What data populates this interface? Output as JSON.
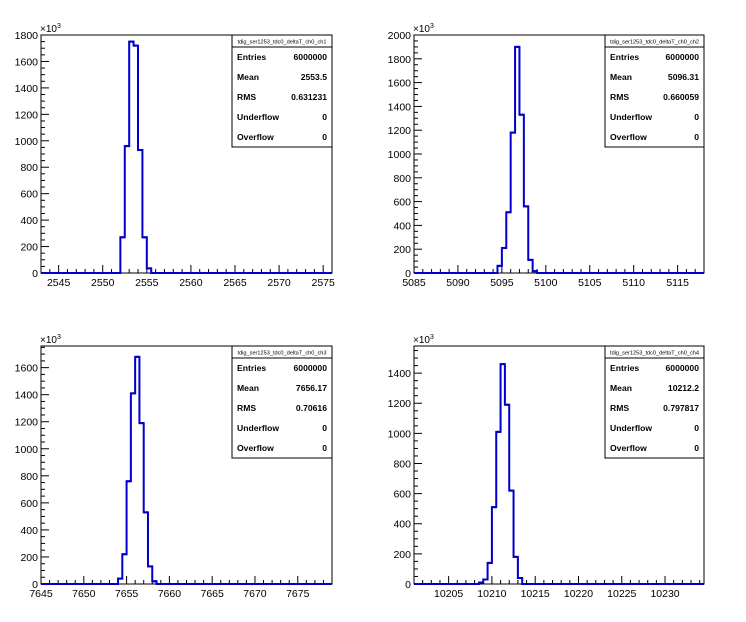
{
  "chart_data": [
    {
      "type": "histogram",
      "title": "tdig_ser1253_tdc0_deltaT_ch0_ch1",
      "axis_multiplier": "10",
      "axis_exponent": "3",
      "xlim": [
        2543,
        2576
      ],
      "ylim": [
        0,
        1800
      ],
      "xticks": [
        2545,
        2550,
        2555,
        2560,
        2565,
        2570,
        2575
      ],
      "yticks": [
        0,
        200,
        400,
        600,
        800,
        1000,
        1200,
        1400,
        1600,
        1800
      ],
      "bin_width": 0.5,
      "bins": [
        {
          "x": 2552.0,
          "y": 270
        },
        {
          "x": 2552.5,
          "y": 960
        },
        {
          "x": 2553.0,
          "y": 1750
        },
        {
          "x": 2553.5,
          "y": 1720
        },
        {
          "x": 2554.0,
          "y": 930
        },
        {
          "x": 2554.5,
          "y": 270
        },
        {
          "x": 2555.0,
          "y": 35
        }
      ],
      "stats": [
        {
          "label": "Entries",
          "value": "6000000"
        },
        {
          "label": "Mean",
          "value": "2553.5"
        },
        {
          "label": "RMS",
          "value": "0.631231"
        },
        {
          "label": "Underflow",
          "value": "0"
        },
        {
          "label": "Overflow",
          "value": "0"
        }
      ],
      "line_color": "#0000cc"
    },
    {
      "type": "histogram",
      "title": "tdig_ser1253_tdc0_deltaT_ch0_ch2",
      "axis_multiplier": "10",
      "axis_exponent": "3",
      "xlim": [
        5085,
        5118
      ],
      "ylim": [
        0,
        2000
      ],
      "xticks": [
        5085,
        5090,
        5095,
        5100,
        5105,
        5110,
        5115
      ],
      "yticks": [
        0,
        200,
        400,
        600,
        800,
        1000,
        1200,
        1400,
        1600,
        1800,
        2000
      ],
      "bin_width": 0.5,
      "bins": [
        {
          "x": 5094.5,
          "y": 60
        },
        {
          "x": 5095.0,
          "y": 210
        },
        {
          "x": 5095.5,
          "y": 510
        },
        {
          "x": 5096.0,
          "y": 1180
        },
        {
          "x": 5096.5,
          "y": 1900
        },
        {
          "x": 5097.0,
          "y": 1330
        },
        {
          "x": 5097.5,
          "y": 560
        },
        {
          "x": 5098.0,
          "y": 110
        },
        {
          "x": 5098.5,
          "y": 15
        }
      ],
      "stats": [
        {
          "label": "Entries",
          "value": "6000000"
        },
        {
          "label": "Mean",
          "value": "5096.31"
        },
        {
          "label": "RMS",
          "value": "0.660059"
        },
        {
          "label": "Underflow",
          "value": "0"
        },
        {
          "label": "Overflow",
          "value": "0"
        }
      ],
      "line_color": "#0000cc"
    },
    {
      "type": "histogram",
      "title": "tdig_ser1253_tdc0_deltaT_ch0_ch3",
      "axis_multiplier": "10",
      "axis_exponent": "3",
      "xlim": [
        7645,
        7679
      ],
      "ylim": [
        0,
        1760
      ],
      "xticks": [
        7645,
        7650,
        7655,
        7660,
        7665,
        7670,
        7675
      ],
      "yticks": [
        0,
        200,
        400,
        600,
        800,
        1000,
        1200,
        1400,
        1600
      ],
      "bin_width": 0.5,
      "bins": [
        {
          "x": 7654.0,
          "y": 40
        },
        {
          "x": 7654.5,
          "y": 220
        },
        {
          "x": 7655.0,
          "y": 760
        },
        {
          "x": 7655.5,
          "y": 1410
        },
        {
          "x": 7656.0,
          "y": 1680
        },
        {
          "x": 7656.5,
          "y": 1190
        },
        {
          "x": 7657.0,
          "y": 530
        },
        {
          "x": 7657.5,
          "y": 130
        },
        {
          "x": 7658.0,
          "y": 20
        }
      ],
      "stats": [
        {
          "label": "Entries",
          "value": "6000000"
        },
        {
          "label": "Mean",
          "value": "7656.17"
        },
        {
          "label": "RMS",
          "value": "0.70616"
        },
        {
          "label": "Underflow",
          "value": "0"
        },
        {
          "label": "Overflow",
          "value": "0"
        }
      ],
      "line_color": "#0000cc"
    },
    {
      "type": "histogram",
      "title": "tdig_ser1253_tdc0_deltaT_ch0_ch4",
      "axis_multiplier": "10",
      "axis_exponent": "3",
      "xlim": [
        10201,
        10234.5
      ],
      "ylim": [
        0,
        1580
      ],
      "xticks": [
        10205,
        10210,
        10215,
        10220,
        10225,
        10230
      ],
      "yticks": [
        0,
        200,
        400,
        600,
        800,
        1000,
        1200,
        1400
      ],
      "bin_width": 0.5,
      "bins": [
        {
          "x": 10208.5,
          "y": 10
        },
        {
          "x": 10209.0,
          "y": 30
        },
        {
          "x": 10209.5,
          "y": 140
        },
        {
          "x": 10210.0,
          "y": 510
        },
        {
          "x": 10210.5,
          "y": 1010
        },
        {
          "x": 10211.0,
          "y": 1460
        },
        {
          "x": 10211.5,
          "y": 1190
        },
        {
          "x": 10212.0,
          "y": 620
        },
        {
          "x": 10212.5,
          "y": 180
        },
        {
          "x": 10213.0,
          "y": 40
        }
      ],
      "stats": [
        {
          "label": "Entries",
          "value": "6000000"
        },
        {
          "label": "Mean",
          "value": "10212.2"
        },
        {
          "label": "RMS",
          "value": "0.797817"
        },
        {
          "label": "Underflow",
          "value": "0"
        },
        {
          "label": "Overflow",
          "value": "0"
        }
      ],
      "line_color": "#0000cc"
    }
  ]
}
